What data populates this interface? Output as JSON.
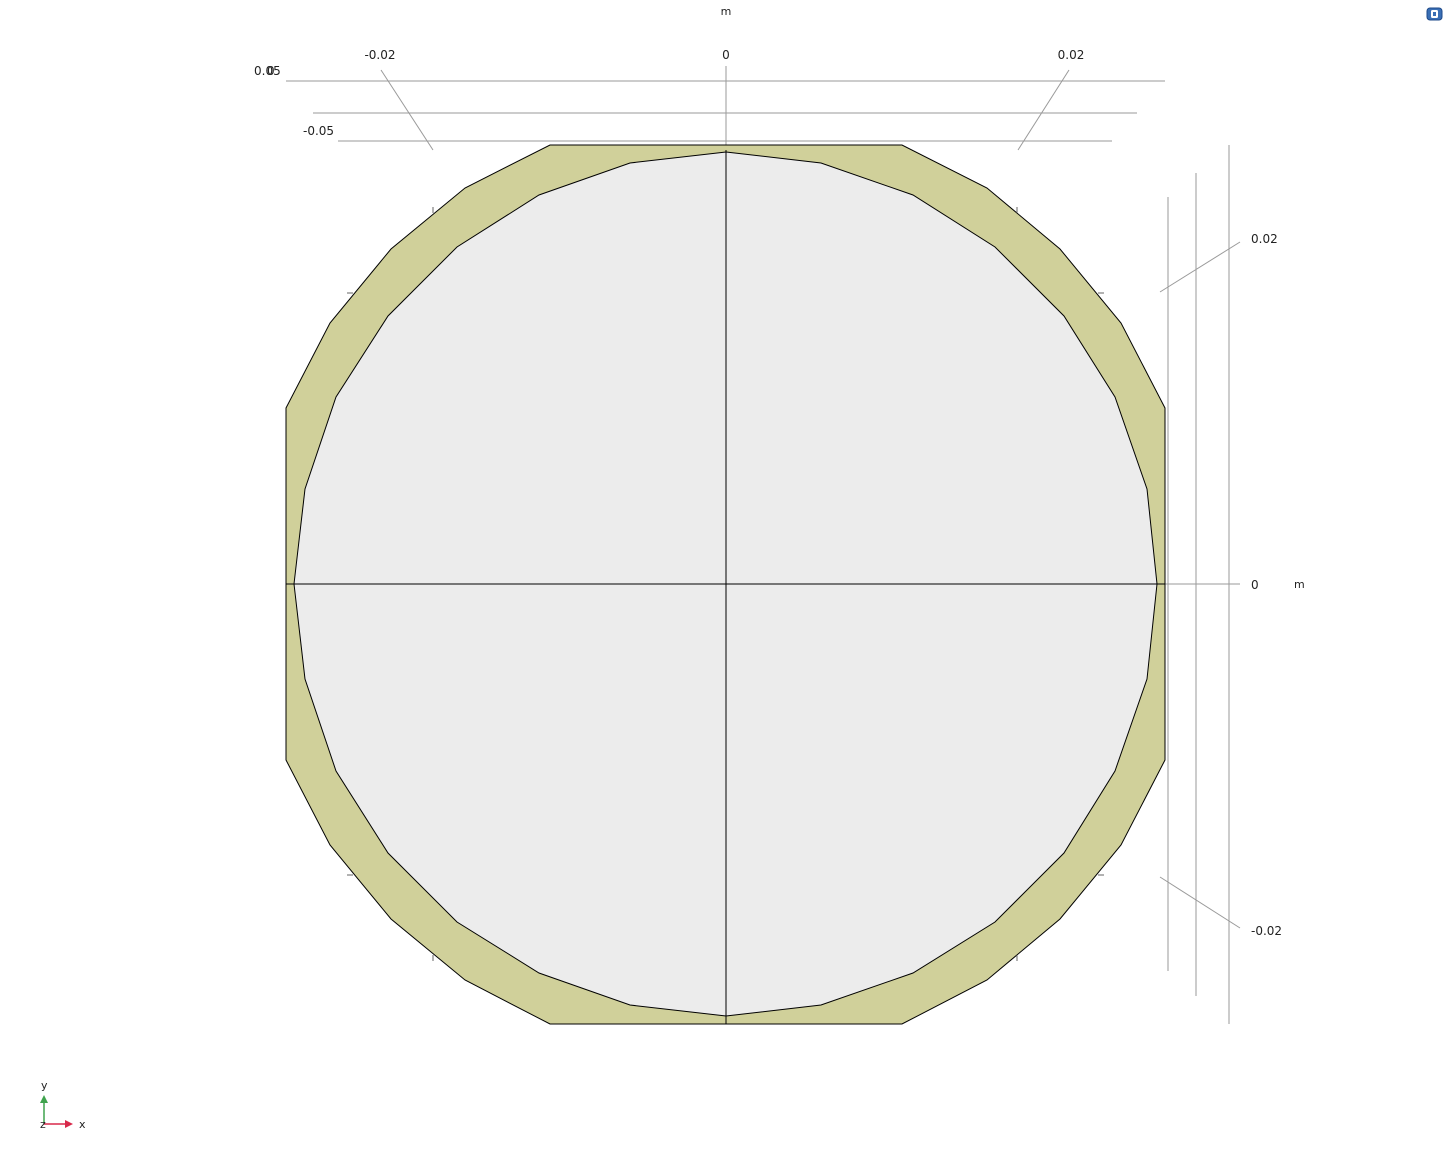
{
  "viewer": {
    "colors": {
      "background": "#ffffff",
      "outer_domain": "#d0d09a",
      "inner_domain": "#ececec",
      "edge": "#000000",
      "grid_line": "#9a9a9a",
      "x_axis_triad": "#d8294a",
      "y_axis_triad": "#3fa34d"
    },
    "x_axis": {
      "unit": "m",
      "tick_labels": [
        "-0.02",
        "0",
        "0.02"
      ]
    },
    "y_axis": {
      "unit": "m",
      "tick_labels": [
        "0.02",
        "0",
        "-0.02"
      ]
    },
    "z_axis": {
      "tick_labels": [
        "0.05",
        "0",
        "-0.05"
      ]
    },
    "triad": {
      "x_label": "x",
      "y_label": "y",
      "z_label": "z"
    },
    "view_icon": "view-cube-icon"
  }
}
